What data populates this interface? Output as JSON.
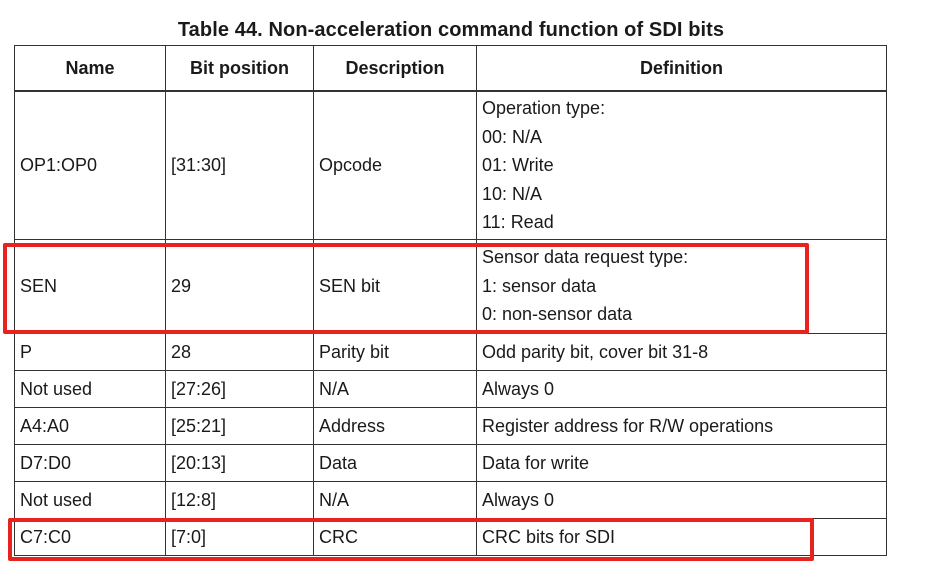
{
  "table": {
    "caption": "Table 44. Non-acceleration command function of SDI bits",
    "headers": [
      "Name",
      "Bit position",
      "Description",
      "Definition"
    ],
    "rows": [
      {
        "name": "OP1:OP0",
        "bit": "[31:30]",
        "desc": "Opcode",
        "def": [
          "Operation type:",
          "00: N/A",
          "01: Write",
          "10: N/A",
          "11: Read"
        ]
      },
      {
        "name": "SEN",
        "bit": "29",
        "desc": "SEN bit",
        "def": [
          "Sensor data request type:",
          "1: sensor data",
          "0: non-sensor data"
        ]
      },
      {
        "name": "P",
        "bit": "28",
        "desc": "Parity bit",
        "def": [
          "Odd parity bit, cover bit 31-8"
        ]
      },
      {
        "name": "Not used",
        "bit": "[27:26]",
        "desc": "N/A",
        "def": [
          "Always 0"
        ]
      },
      {
        "name": "A4:A0",
        "bit": "[25:21]",
        "desc": "Address",
        "def": [
          "Register address for R/W operations"
        ]
      },
      {
        "name": "D7:D0",
        "bit": "[20:13]",
        "desc": "Data",
        "def": [
          "Data for write"
        ]
      },
      {
        "name": "Not used",
        "bit": "[12:8]",
        "desc": "N/A",
        "def": [
          "Always 0"
        ]
      },
      {
        "name": "C7:C0",
        "bit": "[7:0]",
        "desc": "CRC",
        "def": [
          "CRC bits for SDI"
        ]
      }
    ]
  },
  "highlight_color": "#e8231f"
}
